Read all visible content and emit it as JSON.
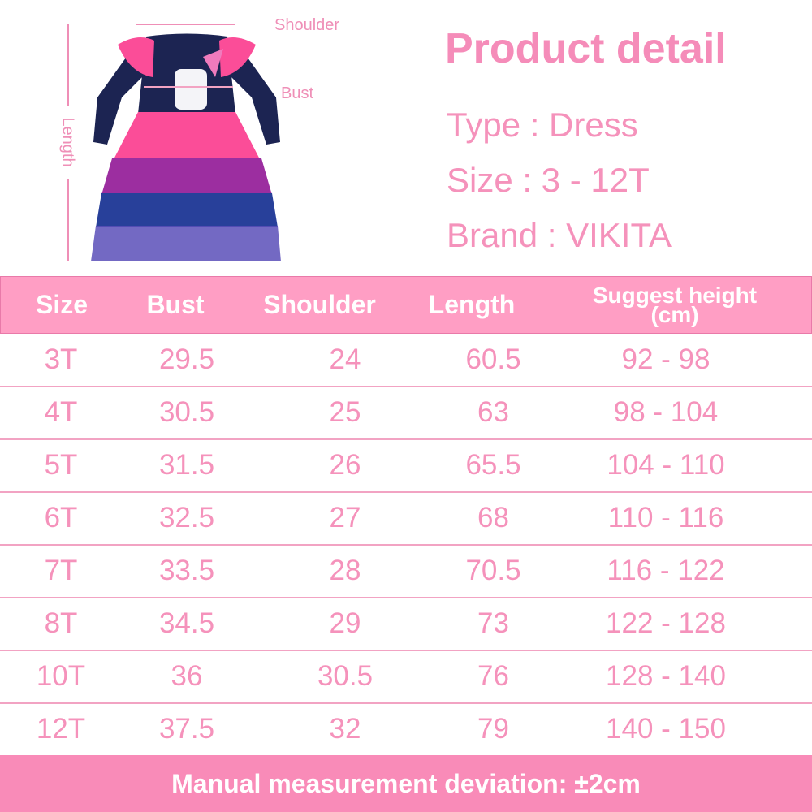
{
  "measure_labels": {
    "shoulder": "Shoulder",
    "bust": "Bust",
    "length": "Length"
  },
  "product": {
    "title": "Product detail",
    "type": "Type : Dress",
    "size": "Size : 3 - 12T",
    "brand": "Brand : VIKITA"
  },
  "table": {
    "headers": [
      "Size",
      "Bust",
      "Shoulder",
      "Length",
      "Suggest height",
      "(cm)"
    ],
    "rows": [
      [
        "3T",
        "29.5",
        "24",
        "60.5",
        "92 - 98"
      ],
      [
        "4T",
        "30.5",
        "25",
        "63",
        "98 - 104"
      ],
      [
        "5T",
        "31.5",
        "26",
        "65.5",
        "104 - 110"
      ],
      [
        "6T",
        "32.5",
        "27",
        "68",
        "110 - 116"
      ],
      [
        "7T",
        "33.5",
        "28",
        "70.5",
        "116 - 122"
      ],
      [
        "8T",
        "34.5",
        "29",
        "73",
        "122 - 128"
      ],
      [
        "10T",
        "36",
        "30.5",
        "76",
        "128 - 140"
      ],
      [
        "12T",
        "37.5",
        "32",
        "79",
        "140 - 150"
      ]
    ]
  },
  "footer": "Manual measurement deviation: ±2cm",
  "colors": {
    "header_bg": "#ff9ec4",
    "text_pink": "#f592bb",
    "footer_bg": "#f98bb8",
    "navy": "#1c2452",
    "hot_pink": "#fb3d8e"
  }
}
